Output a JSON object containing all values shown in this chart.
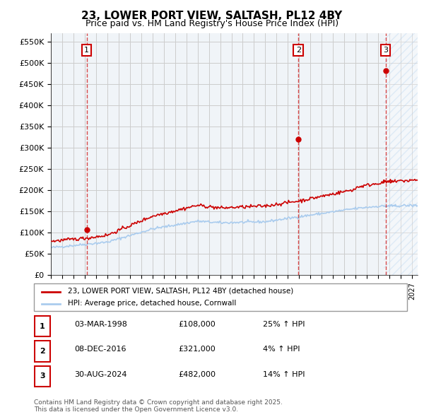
{
  "title": "23, LOWER PORT VIEW, SALTASH, PL12 4BY",
  "subtitle": "Price paid vs. HM Land Registry's House Price Index (HPI)",
  "ylabel": "",
  "xlim_start": 1995.0,
  "xlim_end": 2027.5,
  "ylim_min": 0,
  "ylim_max": 570000,
  "yticks": [
    0,
    50000,
    100000,
    150000,
    200000,
    250000,
    300000,
    350000,
    400000,
    450000,
    500000,
    550000
  ],
  "ytick_labels": [
    "£0",
    "£50K",
    "£100K",
    "£150K",
    "£200K",
    "£250K",
    "£300K",
    "£350K",
    "£400K",
    "£450K",
    "£500K",
    "£550K"
  ],
  "sale_dates": [
    1998.17,
    2016.93,
    2024.66
  ],
  "sale_prices": [
    108000,
    321000,
    482000
  ],
  "sale_labels": [
    "1",
    "2",
    "3"
  ],
  "red_line_color": "#cc0000",
  "blue_line_color": "#aaccee",
  "hatch_color": "#aaccee",
  "sale_marker_color": "#cc0000",
  "vline_color": "#cc0000",
  "grid_color": "#cccccc",
  "bg_color": "#f0f4f8",
  "legend_label_red": "23, LOWER PORT VIEW, SALTASH, PL12 4BY (detached house)",
  "legend_label_blue": "HPI: Average price, detached house, Cornwall",
  "table_rows": [
    [
      "1",
      "03-MAR-1998",
      "£108,000",
      "25% ↑ HPI"
    ],
    [
      "2",
      "08-DEC-2016",
      "£321,000",
      "4% ↑ HPI"
    ],
    [
      "3",
      "30-AUG-2024",
      "£482,000",
      "14% ↑ HPI"
    ]
  ],
  "footer_text": "Contains HM Land Registry data © Crown copyright and database right 2025.\nThis data is licensed under the Open Government Licence v3.0.",
  "future_hatch_start": 2024.66
}
